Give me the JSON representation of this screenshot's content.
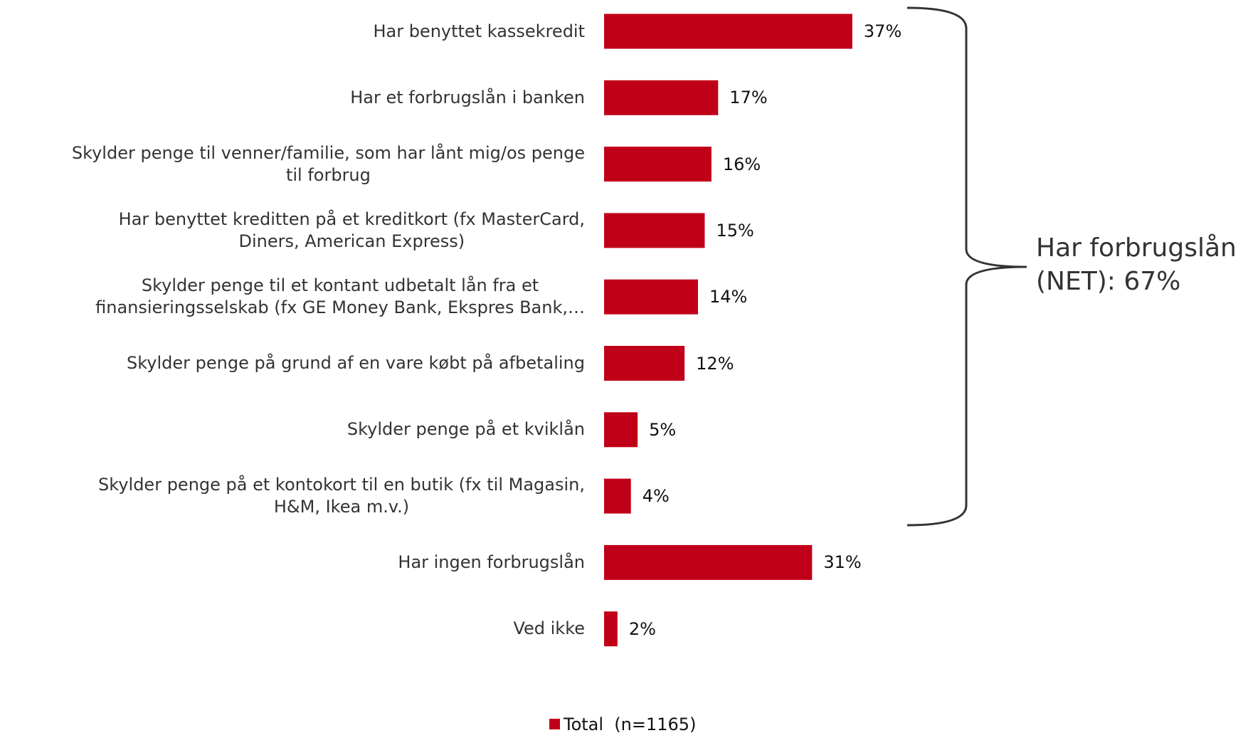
{
  "chart_data": {
    "type": "bar",
    "orientation": "horizontal",
    "categories": [
      "Har benyttet kassekredit",
      "Har et forbrugslån i banken",
      "Skylder penge til venner/familie, som har lånt mig/os penge\ntil forbrug",
      "Har benyttet kreditten på et kreditkort (fx MasterCard,\nDiners, American Express)",
      "Skylder penge til et kontant udbetalt lån fra et\nfinansieringsselskab (fx GE Money Bank, Ekspres Bank,…",
      "Skylder penge på grund af en vare købt på afbetaling",
      "Skylder penge på et kviklån",
      "Skylder penge på et kontokort til en butik (fx til Magasin,\nH&M, Ikea m.v.)",
      "Har ingen forbrugslån",
      "Ved ikke"
    ],
    "series": [
      {
        "name": "Total  (n=1165)",
        "color": "#c00018",
        "values": [
          37,
          17,
          16,
          15,
          14,
          12,
          5,
          4,
          31,
          2
        ],
        "value_labels": [
          "37%",
          "17%",
          "16%",
          "15%",
          "14%",
          "12%",
          "5%",
          "4%",
          "31%",
          "2%"
        ]
      }
    ],
    "annotation": "Har forbrugslån\n(NET): 67%"
  }
}
